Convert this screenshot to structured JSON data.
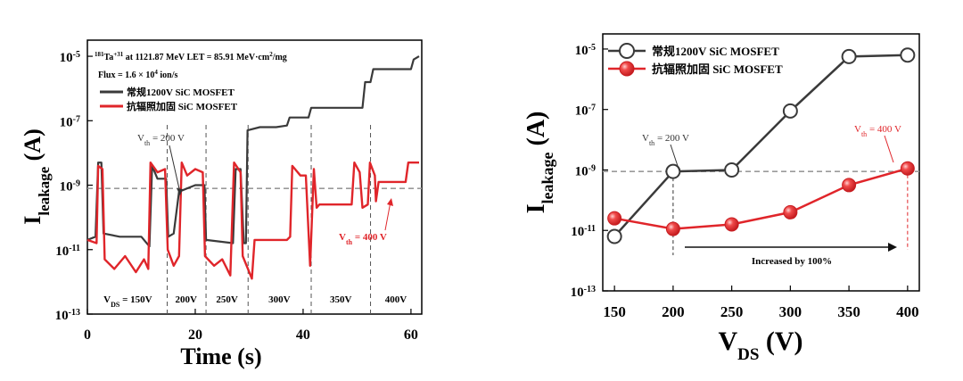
{
  "chart_data": [
    {
      "type": "line",
      "xlabel": "Time (s)",
      "ylabel_main": "I",
      "ylabel_sub": "leakage",
      "ylabel_unit": " (A)",
      "xlim": [
        0,
        62
      ],
      "ylim_log10": [
        -13,
        -4.5
      ],
      "y_scale": "log",
      "xticks": [
        "0",
        "20",
        "40",
        "60"
      ],
      "yticks": [
        {
          "exp": -13,
          "label": "10",
          "sup": "-13"
        },
        {
          "exp": -11,
          "label": "10",
          "sup": "-11"
        },
        {
          "exp": -9,
          "label": "10",
          "sup": "-9"
        },
        {
          "exp": -7,
          "label": "10",
          "sup": "-7"
        },
        {
          "exp": -5,
          "label": "10",
          "sup": "-5"
        }
      ],
      "header": {
        "ion_pre": "181",
        "ion_mid": "Ta",
        "ion_sup": "+31",
        "ion_post": " at 1121.87 MeV  LET = 85.91 MeV·cm",
        "ion_sup2": "2",
        "ion_end": "/mg",
        "flux_pre": "Flux = 1.6 × 10",
        "flux_sup": "4",
        "flux_post": " ion/s"
      },
      "legend": [
        {
          "name": "常规1200V SiC MOSFET",
          "color": "#3a3a3a"
        },
        {
          "name": "抗辐照加固 SiC MOSFET",
          "color": "#e0252a"
        }
      ],
      "reference_line_log10": -9.1,
      "segment_boundaries_s": [
        14.8,
        22,
        29.8,
        41.5,
        52.5
      ],
      "segment_labels": [
        {
          "pre": "V",
          "sub": "DS",
          "post": " = 150V",
          "x": 7.5
        },
        {
          "pre": "200V",
          "sub": "",
          "post": "",
          "x": 18.3
        },
        {
          "pre": "250V",
          "sub": "",
          "post": "",
          "x": 25.9
        },
        {
          "pre": "300V",
          "sub": "",
          "post": "",
          "x": 35.6
        },
        {
          "pre": "350V",
          "sub": "",
          "post": "",
          "x": 47
        },
        {
          "pre": "400V",
          "sub": "",
          "post": "",
          "x": 57.2
        }
      ],
      "annotations": [
        {
          "pre": "V",
          "sub": "th",
          "post": " = 200 V",
          "color": "#333333"
        },
        {
          "pre": "V",
          "sub": "th",
          "post": " = 400 V",
          "color": "#e0252a"
        }
      ],
      "series": [
        {
          "name": "常规1200V SiC MOSFET",
          "color": "#3a3a3a",
          "points": [
            [
              0,
              -10.7
            ],
            [
              1.5,
              -10.6
            ],
            [
              2,
              -8.3
            ],
            [
              2.6,
              -8.3
            ],
            [
              3,
              -10.5
            ],
            [
              6,
              -10.6
            ],
            [
              10,
              -10.6
            ],
            [
              11.5,
              -10.9
            ],
            [
              12,
              -8.4
            ],
            [
              13,
              -8.8
            ],
            [
              14.6,
              -8.8
            ],
            [
              15,
              -10.6
            ],
            [
              16,
              -10.5
            ],
            [
              17,
              -9.2
            ],
            [
              20,
              -9
            ],
            [
              21.7,
              -9
            ],
            [
              22,
              -10.7
            ],
            [
              27,
              -10.8
            ],
            [
              27.5,
              -8.5
            ],
            [
              28.4,
              -8.5
            ],
            [
              29,
              -10.8
            ],
            [
              29.4,
              -10.8
            ],
            [
              29.7,
              -7.3
            ],
            [
              32,
              -7.2
            ],
            [
              35,
              -7.2
            ],
            [
              37,
              -7.15
            ],
            [
              37.5,
              -6.9
            ],
            [
              40,
              -6.9
            ],
            [
              41,
              -6.9
            ],
            [
              41.5,
              -6.6
            ],
            [
              51,
              -6.6
            ],
            [
              51.5,
              -5.8
            ],
            [
              52.5,
              -5.8
            ],
            [
              53,
              -5.4
            ],
            [
              60,
              -5.4
            ],
            [
              60.5,
              -5.1
            ],
            [
              61.5,
              -5
            ]
          ]
        },
        {
          "name": "抗辐照加固 SiC MOSFET",
          "color": "#e0252a",
          "points": [
            [
              0,
              -10.7
            ],
            [
              1.7,
              -10.8
            ],
            [
              2,
              -8.4
            ],
            [
              2.8,
              -8.5
            ],
            [
              3.2,
              -11.3
            ],
            [
              5,
              -11.6
            ],
            [
              7,
              -11.2
            ],
            [
              9,
              -11.7
            ],
            [
              10.5,
              -11.3
            ],
            [
              11.3,
              -11.6
            ],
            [
              11.7,
              -8.3
            ],
            [
              13,
              -8.6
            ],
            [
              14.4,
              -8.5
            ],
            [
              14.9,
              -11
            ],
            [
              16,
              -11.5
            ],
            [
              17,
              -11.2
            ],
            [
              17.5,
              -8.3
            ],
            [
              18.5,
              -8.7
            ],
            [
              20,
              -8.5
            ],
            [
              21.4,
              -8.6
            ],
            [
              21.8,
              -11.2
            ],
            [
              23.5,
              -11.5
            ],
            [
              25,
              -11.3
            ],
            [
              26.5,
              -11.8
            ],
            [
              27.2,
              -8.3
            ],
            [
              28.4,
              -8.6
            ],
            [
              28.8,
              -11.2
            ],
            [
              30.5,
              -11.9
            ],
            [
              31,
              -10.7
            ],
            [
              37,
              -10.7
            ],
            [
              37.6,
              -10.6
            ],
            [
              38,
              -8.4
            ],
            [
              39.5,
              -8.7
            ],
            [
              40.5,
              -8.7
            ],
            [
              41.3,
              -11.5
            ],
            [
              42,
              -8.5
            ],
            [
              42.5,
              -9.7
            ],
            [
              43,
              -9.6
            ],
            [
              49,
              -9.6
            ],
            [
              49.5,
              -8.3
            ],
            [
              50.5,
              -8.6
            ],
            [
              51,
              -9.7
            ],
            [
              52,
              -9.6
            ],
            [
              52.4,
              -8.3
            ],
            [
              53.3,
              -8.7
            ],
            [
              53.5,
              -9.5
            ],
            [
              54,
              -8.9
            ],
            [
              59,
              -8.9
            ],
            [
              59.5,
              -8.3
            ],
            [
              61.5,
              -8.3
            ]
          ]
        }
      ]
    },
    {
      "type": "line",
      "xlabel_main": "V",
      "xlabel_sub": "DS",
      "xlabel_unit": " (V)",
      "ylabel_main": "I",
      "ylabel_sub": "leakage",
      "ylabel_unit": " (A)",
      "xlim": [
        140,
        410
      ],
      "ylim_log10": [
        -13,
        -4.5
      ],
      "y_scale": "log",
      "xticks": [
        "150",
        "200",
        "250",
        "300",
        "350",
        "400"
      ],
      "yticks": [
        {
          "exp": -13,
          "label": "10",
          "sup": "-13"
        },
        {
          "exp": -11,
          "label": "10",
          "sup": "-11"
        },
        {
          "exp": -9,
          "label": "10",
          "sup": "-9"
        },
        {
          "exp": -7,
          "label": "10",
          "sup": "-7"
        },
        {
          "exp": -5,
          "label": "10",
          "sup": "-5"
        }
      ],
      "legend": [
        {
          "name": "常规1200V SiC MOSFET",
          "color": "#3a3a3a",
          "marker": "open-circle"
        },
        {
          "name": "抗辐照加固 SiC MOSFET",
          "color": "#e0252a",
          "marker": "filled-circle"
        }
      ],
      "reference_line_log10": -9.05,
      "annotations": [
        {
          "pre": "V",
          "sub": "th",
          "post": " = 200 V",
          "color": "#333333"
        },
        {
          "pre": "V",
          "sub": "th",
          "post": " = 400 V",
          "color": "#e0252a"
        },
        {
          "pre": "Increased by 100%",
          "sub": "",
          "post": "",
          "color": "#111111"
        }
      ],
      "series": [
        {
          "name": "常规1200V SiC MOSFET",
          "color": "#3a3a3a",
          "x": [
            150,
            200,
            250,
            300,
            350,
            400
          ],
          "log10_y": [
            -11.2,
            -9.05,
            -9,
            -7.05,
            -5.25,
            -5.2
          ]
        },
        {
          "name": "抗辐照加固 SiC MOSFET",
          "color": "#e0252a",
          "x": [
            150,
            200,
            250,
            300,
            350,
            400
          ],
          "log10_y": [
            -10.6,
            -10.95,
            -10.8,
            -10.4,
            -9.5,
            -8.95
          ]
        }
      ]
    }
  ]
}
